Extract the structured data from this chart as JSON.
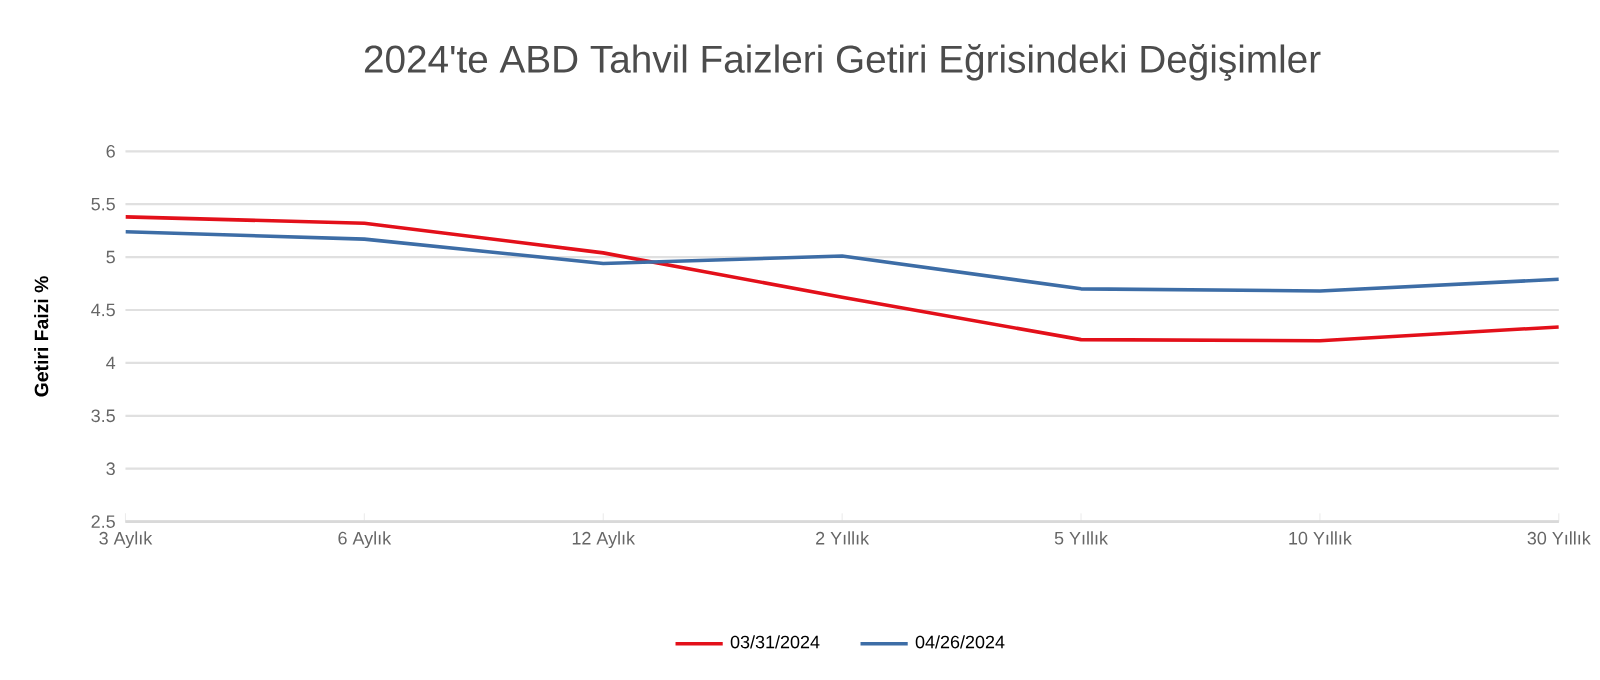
{
  "chart_data": {
    "type": "line",
    "title": "2024'te ABD Tahvil Faizleri Getiri Eğrisindeki Değişimler",
    "ylabel": "Getiri Faizi %",
    "categories": [
      "3 Aylık",
      "6 Aylık",
      "12 Aylık",
      "2 Yıllık",
      "5 Yıllık",
      "10 Yıllık",
      "30 Yıllık"
    ],
    "series": [
      {
        "name": "03/31/2024",
        "color": "#e3101a",
        "values": [
          5.38,
          5.32,
          5.04,
          4.62,
          4.22,
          4.21,
          4.34
        ]
      },
      {
        "name": "04/26/2024",
        "color": "#3d6da6",
        "values": [
          5.24,
          5.17,
          4.94,
          5.01,
          4.7,
          4.68,
          4.79
        ]
      }
    ],
    "ylim": [
      2.5,
      6
    ],
    "yticks": [
      2.5,
      3,
      3.5,
      4,
      4.5,
      5,
      5.5,
      6
    ],
    "grid": "y",
    "legend": "bottom",
    "line_style": "solid"
  }
}
